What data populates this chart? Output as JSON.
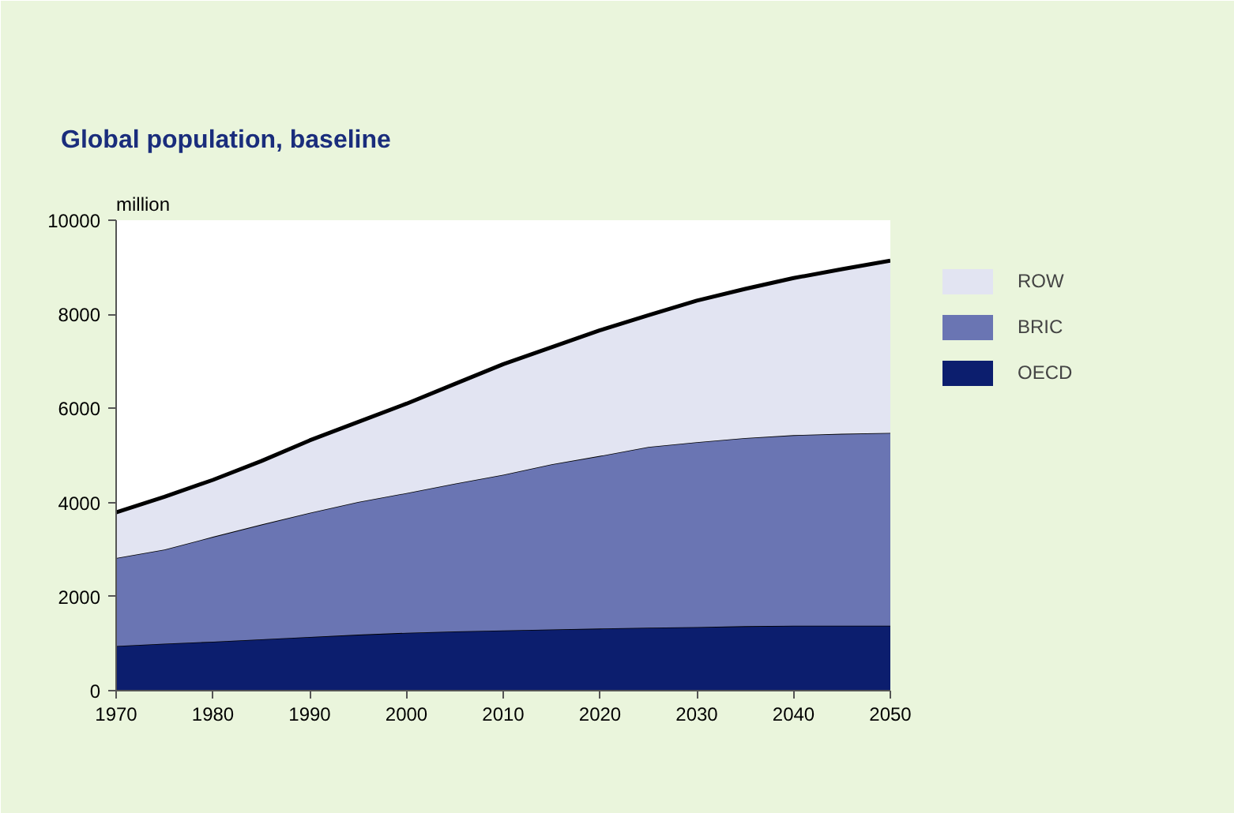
{
  "chart_data": {
    "type": "area",
    "title": "Global population, baseline",
    "ylabel": "million",
    "stacked": true,
    "x": [
      1970,
      1975,
      1980,
      1985,
      1990,
      1995,
      2000,
      2005,
      2010,
      2015,
      2020,
      2025,
      2030,
      2035,
      2040,
      2045,
      2050
    ],
    "series": [
      {
        "name": "OECD",
        "color": "#0c1e6e",
        "values": [
          950,
          1000,
          1040,
          1090,
          1140,
          1190,
          1230,
          1260,
          1280,
          1300,
          1320,
          1340,
          1350,
          1370,
          1380,
          1380,
          1380
        ]
      },
      {
        "name": "BRIC",
        "color": "#6a75b3",
        "values": [
          1870,
          2000,
          2230,
          2440,
          2640,
          2820,
          2970,
          3140,
          3310,
          3510,
          3670,
          3840,
          3930,
          4000,
          4050,
          4080,
          4100
        ]
      },
      {
        "name": "ROW",
        "color": "#e2e4f2",
        "values": [
          970,
          1120,
          1210,
          1350,
          1540,
          1700,
          1900,
          2120,
          2350,
          2490,
          2670,
          2800,
          3010,
          3170,
          3340,
          3500,
          3660
        ]
      }
    ],
    "xlim": [
      1970,
      2050
    ],
    "xticks": [
      1970,
      1980,
      1990,
      2000,
      2010,
      2020,
      2030,
      2040,
      2050
    ],
    "ylim": [
      0,
      10000
    ],
    "yticks": [
      0,
      2000,
      4000,
      6000,
      8000,
      10000
    ],
    "grid": false,
    "legend": "top right"
  }
}
